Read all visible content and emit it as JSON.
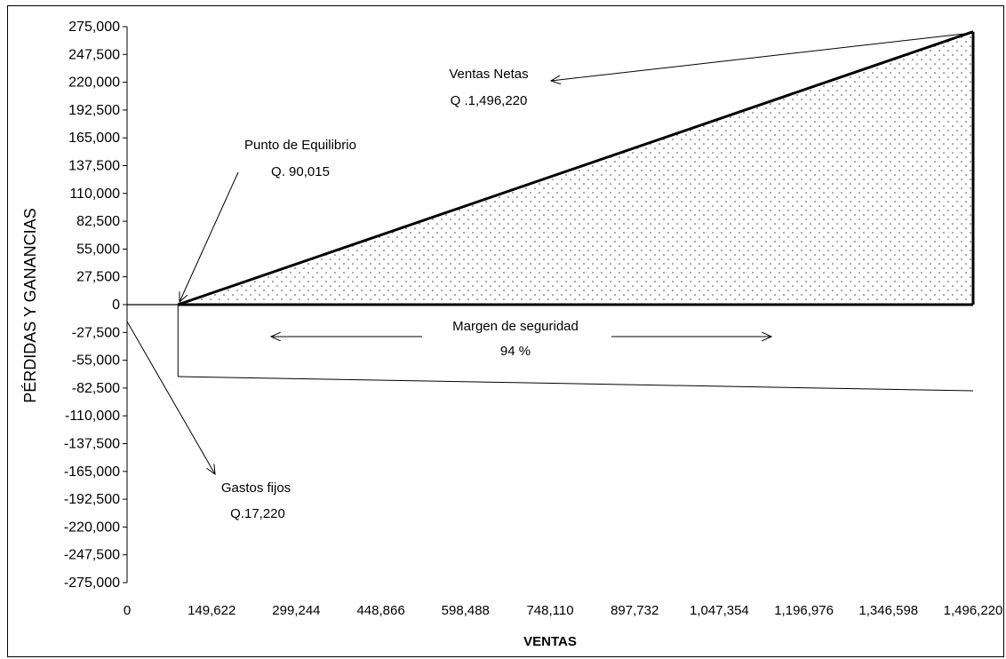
{
  "chart_data": {
    "type": "line",
    "title": "",
    "xlabel": "VENTAS",
    "ylabel": "PÉRDIDAS Y GANANCIAS",
    "x_ticks": [
      "0",
      "149,622",
      "299,244",
      "448,866",
      "598,488",
      "748,110",
      "897,732",
      "1,047,354",
      "1,196,976",
      "1,346,598",
      "1,496,220"
    ],
    "y_ticks": [
      "275,000",
      "247,500",
      "220,000",
      "192,500",
      "165,000",
      "137,500",
      "110,000",
      "82,500",
      "55,000",
      "27,500",
      "0",
      "-27,500",
      "-55,000",
      "-82,500",
      "-110,000",
      "-137,500",
      "-165,000",
      "-192,500",
      "-220,000",
      "-247,500",
      "-275,000"
    ],
    "xlim": [
      0,
      1496220
    ],
    "ylim": [
      -275000,
      275000
    ],
    "grid": false,
    "fill_pattern": "dotted",
    "colors": {
      "line": "#000000",
      "fill_dots": "#444444",
      "background": "#ffffff"
    },
    "series": [
      {
        "points": [
          [
            90015,
            0
          ],
          [
            1496220,
            270000
          ]
        ]
      },
      {
        "points": [
          [
            0,
            -17220
          ],
          [
            1496220,
            -85000
          ]
        ]
      }
    ],
    "annotations": [
      {
        "lines": [
          "Ventas Netas",
          "Q .1,496,220"
        ]
      },
      {
        "lines": [
          "Punto de Equilibrio",
          "Q. 90,015"
        ]
      },
      {
        "lines": [
          "Margen de seguridad",
          "94 %"
        ]
      },
      {
        "lines": [
          "Gastos fijos",
          "Q.17,220"
        ]
      }
    ]
  }
}
